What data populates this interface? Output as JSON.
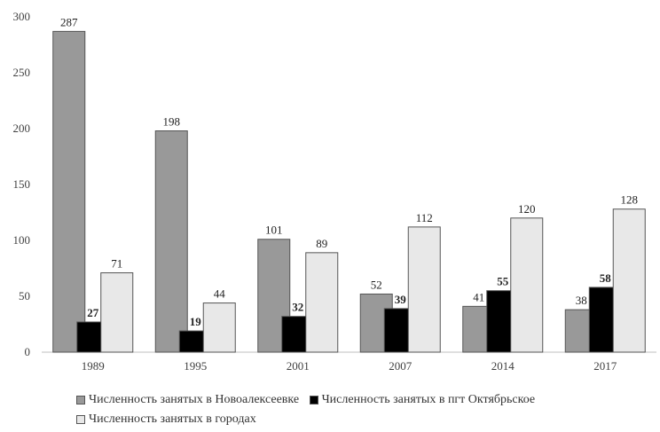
{
  "chart_data": {
    "type": "bar",
    "categories": [
      "1989",
      "1995",
      "2001",
      "2007",
      "2014",
      "2017"
    ],
    "series": [
      {
        "name": "Численность занятых в Новоалексеевке",
        "values": [
          287,
          198,
          101,
          52,
          41,
          38
        ],
        "color": "#999999",
        "label_bold": false
      },
      {
        "name": "Численность занятых в пгт Октябрьское",
        "values": [
          27,
          19,
          32,
          39,
          55,
          58
        ],
        "color": "#000000",
        "label_bold": true
      },
      {
        "name": "Численность занятых в городах",
        "values": [
          71,
          44,
          89,
          112,
          120,
          128
        ],
        "color": "#e8e8e8",
        "label_bold": false
      }
    ],
    "yticks": [
      0,
      50,
      100,
      150,
      200,
      250,
      300
    ],
    "ylim": [
      0,
      300
    ],
    "grid": false,
    "legend_position": "bottom"
  }
}
